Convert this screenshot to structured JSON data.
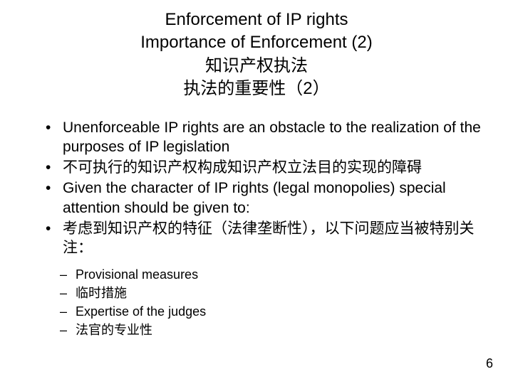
{
  "title": {
    "lines": [
      "Enforcement of IP rights",
      "Importance of Enforcement (2)",
      "知识产权执法",
      "执法的重要性（2）"
    ],
    "fontsize": 24,
    "color": "#000000",
    "align": "center"
  },
  "bullets": {
    "level1": [
      "Unenforceable IP rights are an obstacle to the realization of the purposes of IP legislation",
      "不可执行的知识产权构成知识产权立法目的实现的障碍",
      "Given the character of IP rights (legal monopolies) special attention should be given to:",
      "考虑到知识产权的特征（法律垄断性），以下问题应当被特别关注："
    ],
    "level2": [
      "Provisional measures",
      "临时措施",
      "Expertise of the judges",
      "法官的专业性"
    ],
    "l1_fontsize": 21,
    "l2_fontsize": 18,
    "color": "#000000"
  },
  "page_number": "6",
  "background_color": "#ffffff"
}
